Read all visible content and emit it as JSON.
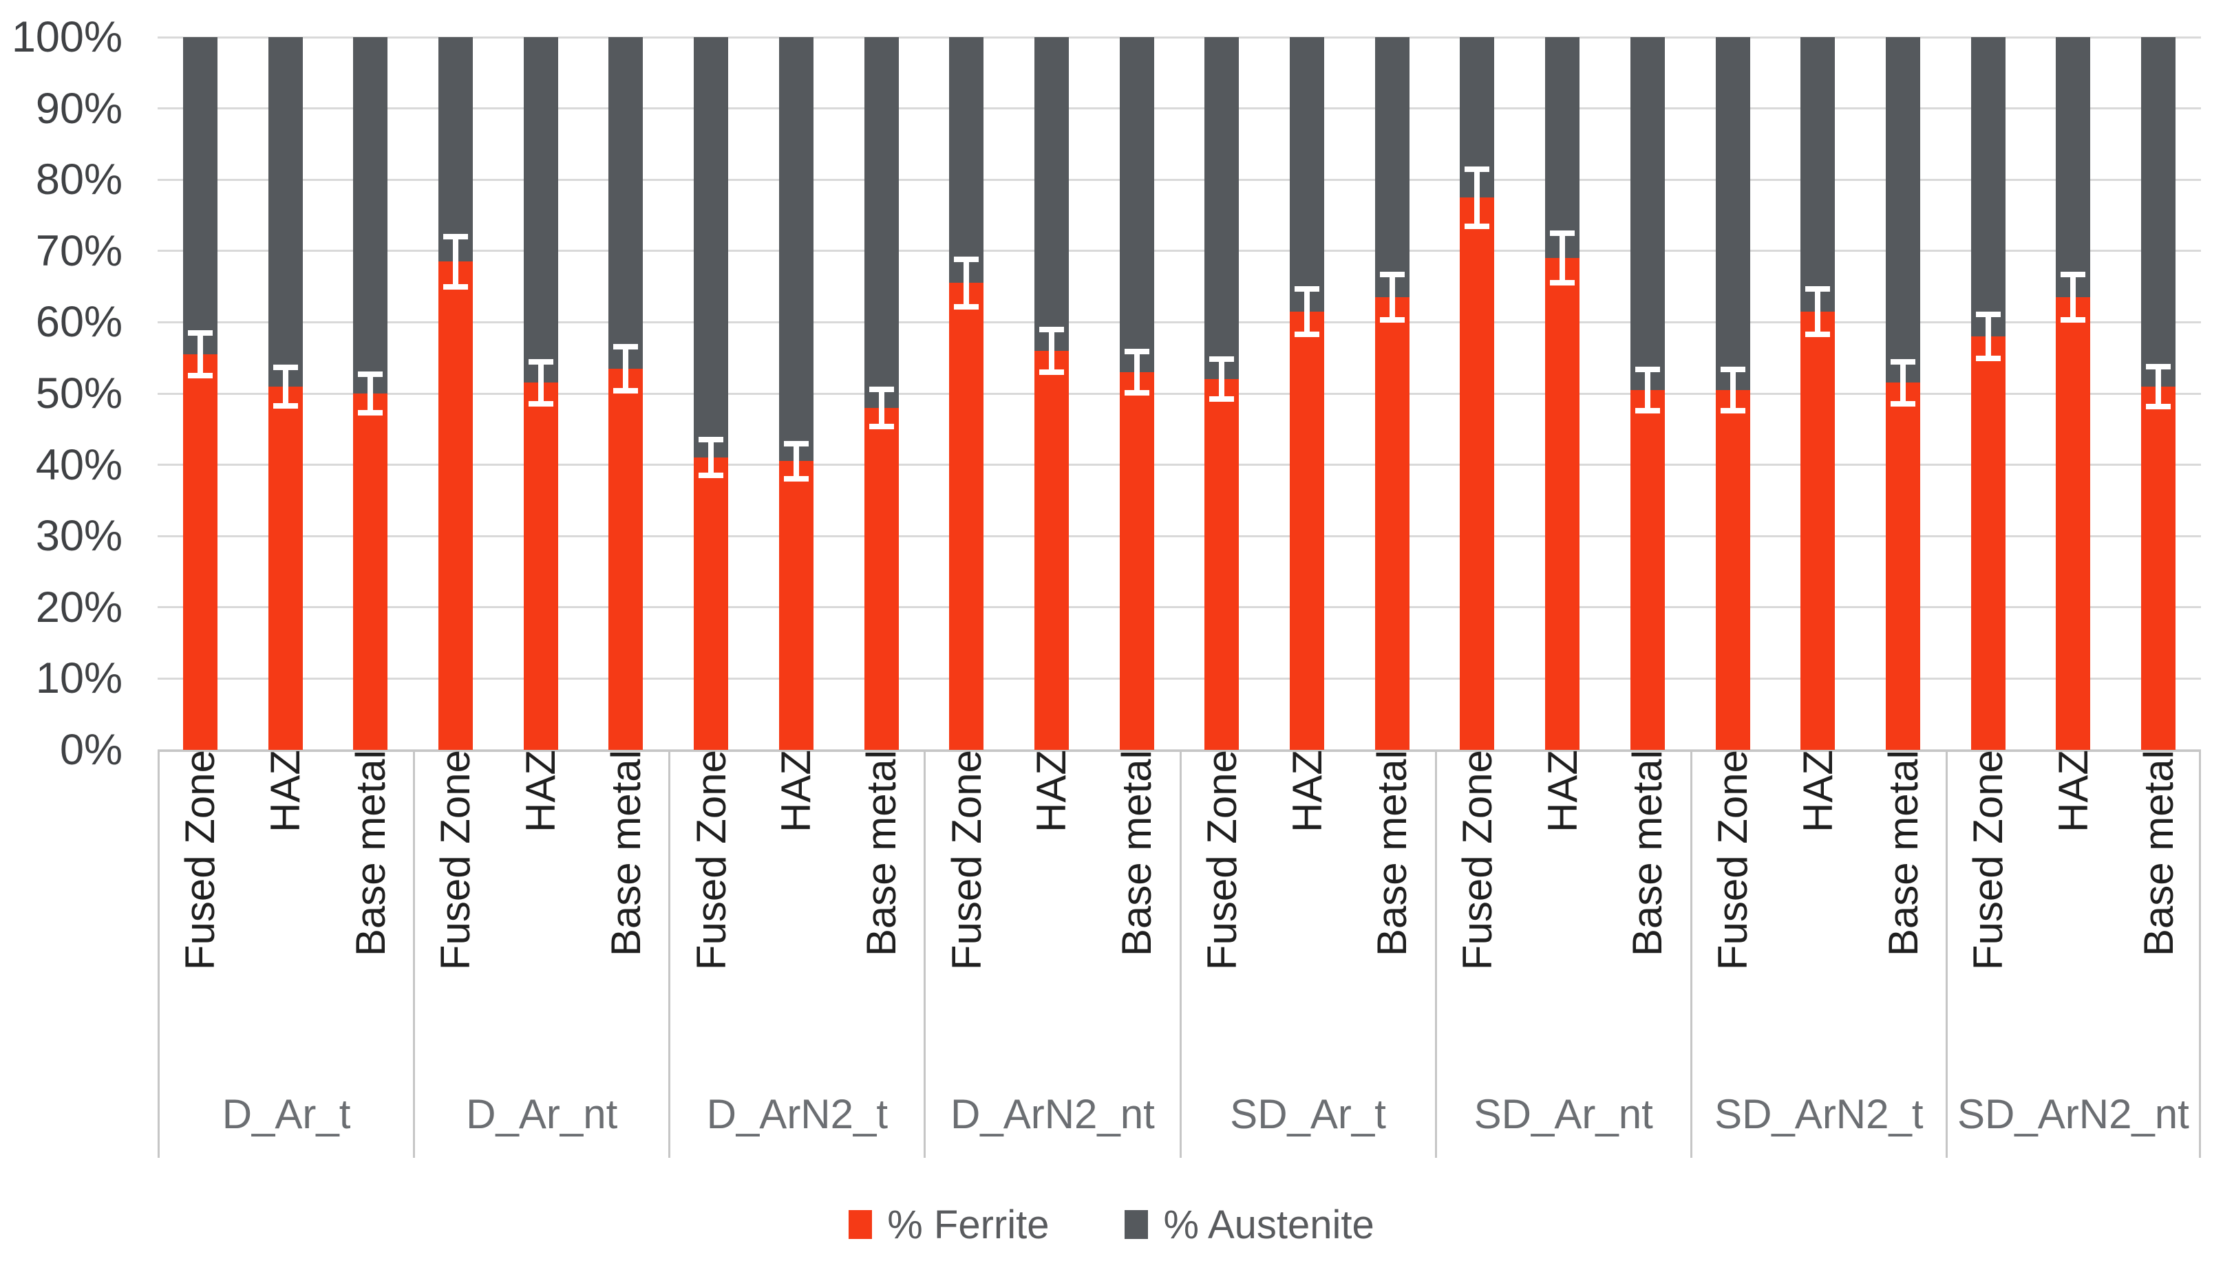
{
  "chart_data": {
    "type": "bar",
    "subtype": "100-percent-stacked-column-with-error-bars",
    "title": "",
    "xlabel": "",
    "ylabel": "",
    "ylim": [
      0,
      100
    ],
    "grid": true,
    "legend_position": "bottom",
    "y_ticks": [
      "100%",
      "90%",
      "80%",
      "70%",
      "60%",
      "50%",
      "40%",
      "30%",
      "20%",
      "10%",
      "0%"
    ],
    "series": [
      {
        "name": "% Ferrite",
        "color": "#f53a16"
      },
      {
        "name": "% Austenite",
        "color": "#55595d"
      }
    ],
    "error_bar_color": "#ffffff",
    "categories_per_group": [
      "Fused Zone",
      "HAZ",
      "Base metal"
    ],
    "groups": [
      {
        "label": "D_Ar_t",
        "bars": [
          {
            "category": "Fused Zone",
            "ferrite_pct": 55.5,
            "austenite_pct": 44.5,
            "error_pct": 3.0
          },
          {
            "category": "HAZ",
            "ferrite_pct": 51.0,
            "austenite_pct": 49.0,
            "error_pct": 2.7
          },
          {
            "category": "Base metal",
            "ferrite_pct": 50.0,
            "austenite_pct": 50.0,
            "error_pct": 2.7
          }
        ]
      },
      {
        "label": "D_Ar_nt",
        "bars": [
          {
            "category": "Fused Zone",
            "ferrite_pct": 68.5,
            "austenite_pct": 31.5,
            "error_pct": 3.5
          },
          {
            "category": "HAZ",
            "ferrite_pct": 51.5,
            "austenite_pct": 48.5,
            "error_pct": 2.9
          },
          {
            "category": "Base metal",
            "ferrite_pct": 53.5,
            "austenite_pct": 46.5,
            "error_pct": 3.1
          }
        ]
      },
      {
        "label": "D_ArN2_t",
        "bars": [
          {
            "category": "Fused Zone",
            "ferrite_pct": 41.0,
            "austenite_pct": 59.0,
            "error_pct": 2.5
          },
          {
            "category": "HAZ",
            "ferrite_pct": 40.5,
            "austenite_pct": 59.5,
            "error_pct": 2.5
          },
          {
            "category": "Base metal",
            "ferrite_pct": 48.0,
            "austenite_pct": 52.0,
            "error_pct": 2.6
          }
        ]
      },
      {
        "label": "D_ArN2_nt",
        "bars": [
          {
            "category": "Fused Zone",
            "ferrite_pct": 65.5,
            "austenite_pct": 34.5,
            "error_pct": 3.3
          },
          {
            "category": "HAZ",
            "ferrite_pct": 56.0,
            "austenite_pct": 44.0,
            "error_pct": 3.0
          },
          {
            "category": "Base metal",
            "ferrite_pct": 53.0,
            "austenite_pct": 47.0,
            "error_pct": 2.9
          }
        ]
      },
      {
        "label": "SD_Ar_t",
        "bars": [
          {
            "category": "Fused Zone",
            "ferrite_pct": 52.0,
            "austenite_pct": 48.0,
            "error_pct": 2.8
          },
          {
            "category": "HAZ",
            "ferrite_pct": 61.5,
            "austenite_pct": 38.5,
            "error_pct": 3.2
          },
          {
            "category": "Base metal",
            "ferrite_pct": 63.5,
            "austenite_pct": 36.5,
            "error_pct": 3.2
          }
        ]
      },
      {
        "label": "SD_Ar_nt",
        "bars": [
          {
            "category": "Fused Zone",
            "ferrite_pct": 77.5,
            "austenite_pct": 22.5,
            "error_pct": 4.0
          },
          {
            "category": "HAZ",
            "ferrite_pct": 69.0,
            "austenite_pct": 31.0,
            "error_pct": 3.5
          },
          {
            "category": "Base metal",
            "ferrite_pct": 50.5,
            "austenite_pct": 49.5,
            "error_pct": 2.9
          }
        ]
      },
      {
        "label": "SD_ArN2_t",
        "bars": [
          {
            "category": "Fused Zone",
            "ferrite_pct": 50.5,
            "austenite_pct": 49.5,
            "error_pct": 2.9
          },
          {
            "category": "HAZ",
            "ferrite_pct": 61.5,
            "austenite_pct": 38.5,
            "error_pct": 3.2
          },
          {
            "category": "Base metal",
            "ferrite_pct": 51.5,
            "austenite_pct": 48.5,
            "error_pct": 2.9
          }
        ]
      },
      {
        "label": "SD_ArN2_nt",
        "bars": [
          {
            "category": "Fused Zone",
            "ferrite_pct": 58.0,
            "austenite_pct": 42.0,
            "error_pct": 3.1
          },
          {
            "category": "HAZ",
            "ferrite_pct": 63.5,
            "austenite_pct": 36.5,
            "error_pct": 3.2
          },
          {
            "category": "Base metal",
            "ferrite_pct": 51.0,
            "austenite_pct": 49.0,
            "error_pct": 2.8
          }
        ]
      }
    ]
  }
}
